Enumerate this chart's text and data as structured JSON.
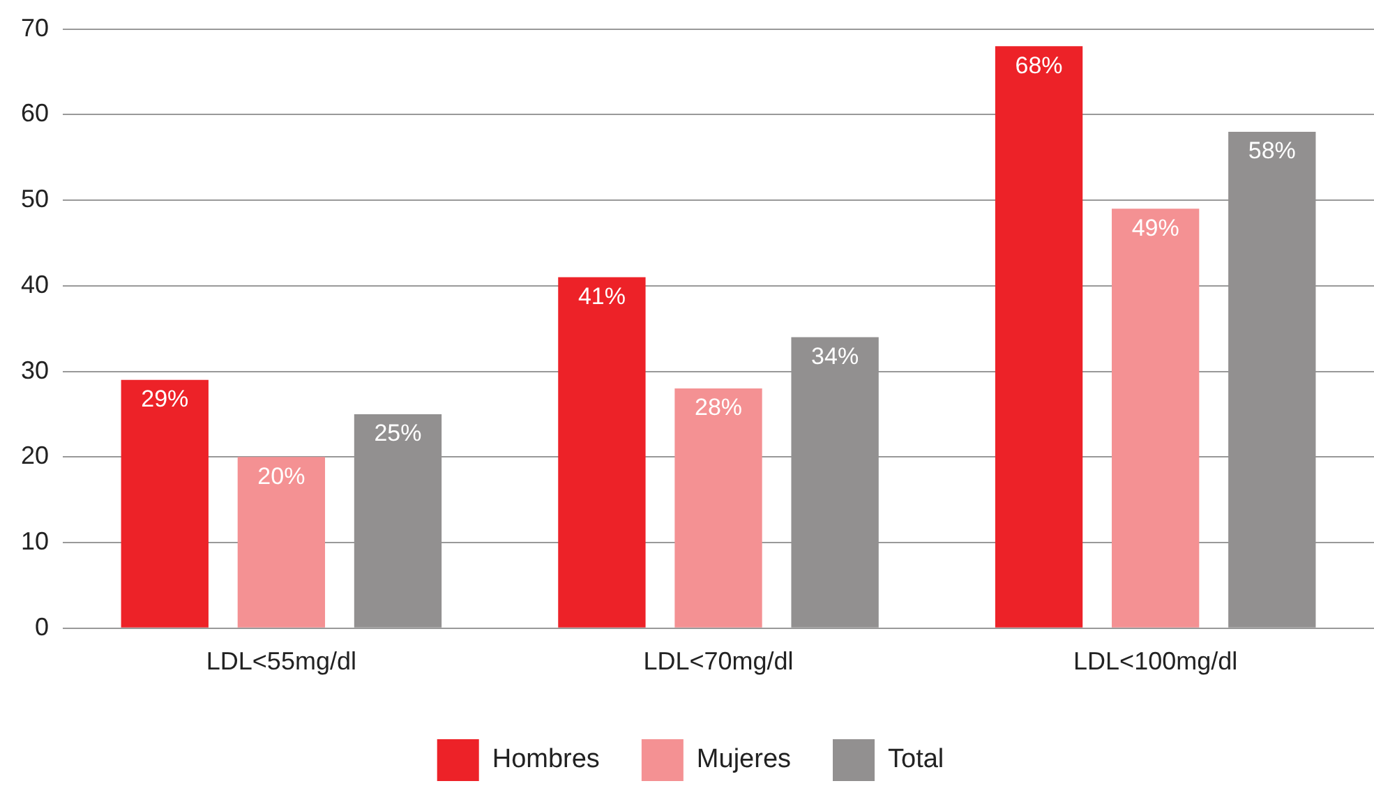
{
  "chart_data": {
    "type": "bar",
    "categories": [
      "LDL<55mg/dl",
      "LDL<70mg/dl",
      "LDL<100mg/dl"
    ],
    "series": [
      {
        "name": "Hombres",
        "color": "#ed2228",
        "values": [
          29,
          41,
          68
        ],
        "value_labels": [
          "29%",
          "41%",
          "68%"
        ]
      },
      {
        "name": "Mujeres",
        "color": "#f49193",
        "values": [
          20,
          28,
          49
        ],
        "value_labels": [
          "20%",
          "28%",
          "49%"
        ]
      },
      {
        "name": "Total",
        "color": "#929090",
        "values": [
          25,
          34,
          58
        ],
        "value_labels": [
          "25%",
          "34%",
          "58%"
        ]
      }
    ],
    "ylim": [
      0,
      70
    ],
    "yticks": [
      0,
      10,
      20,
      30,
      40,
      50,
      60,
      70
    ],
    "grid": "y",
    "legend": "bottom"
  }
}
